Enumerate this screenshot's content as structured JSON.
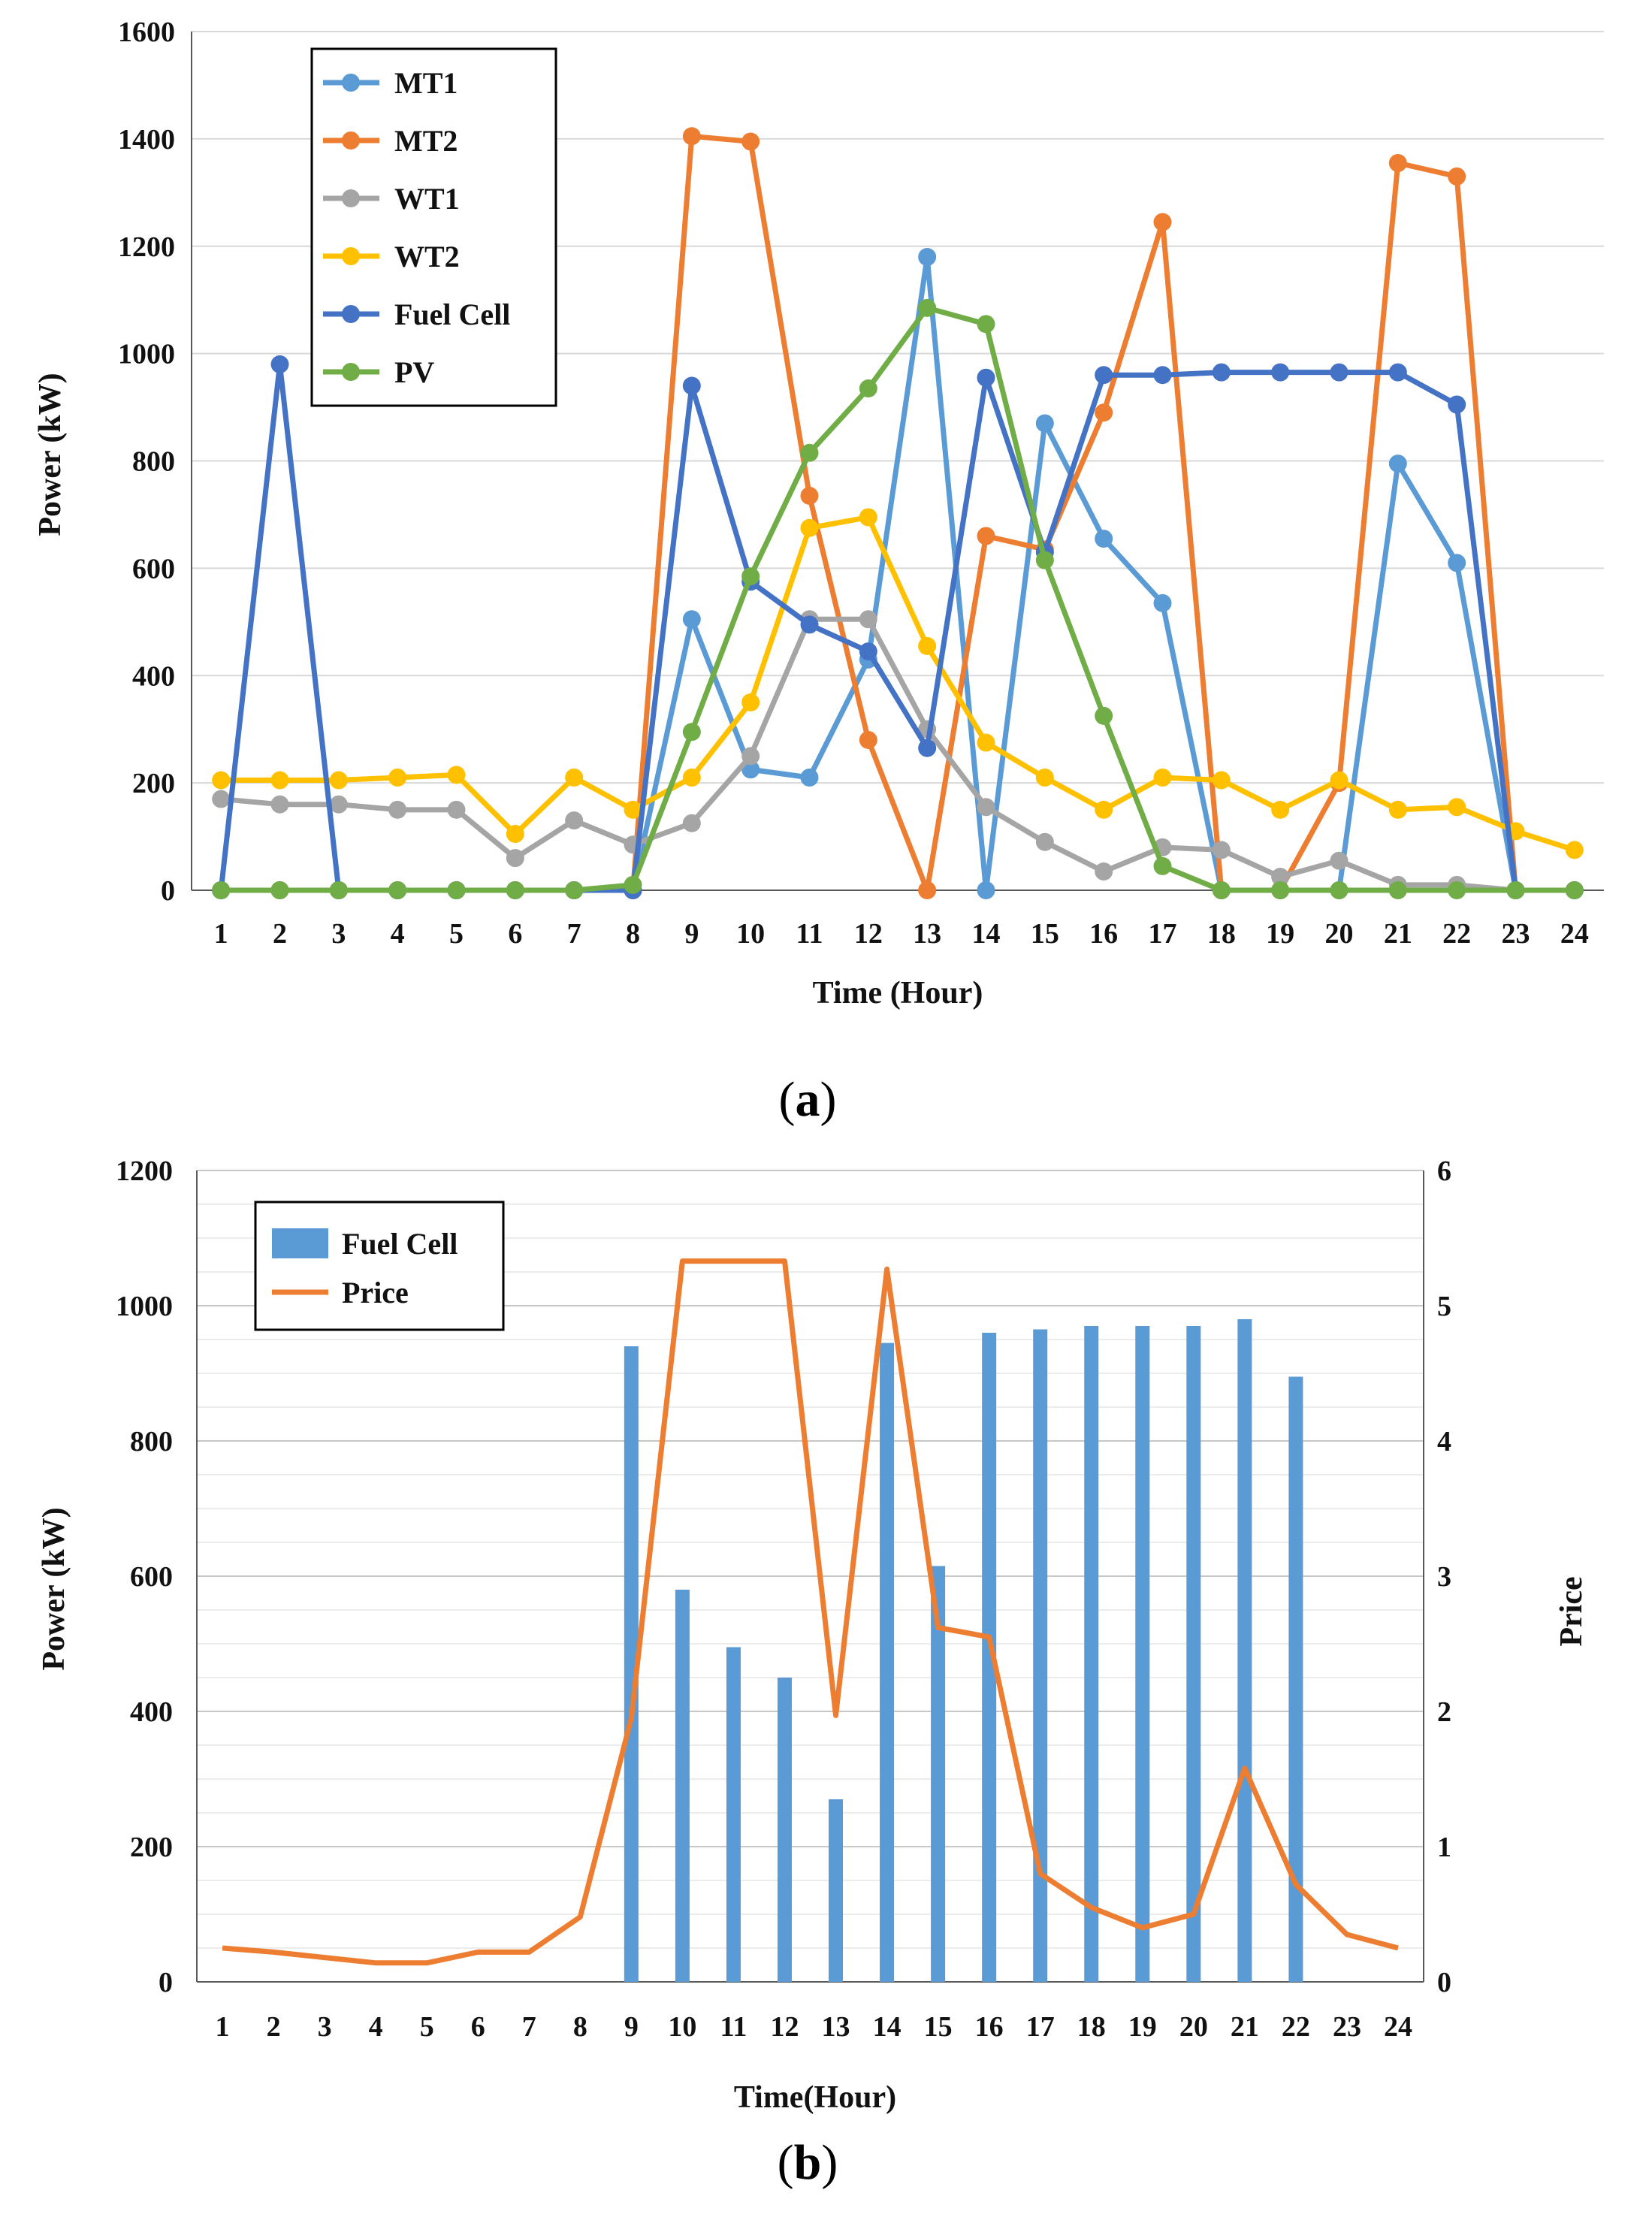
{
  "colors": {
    "mt1": "#5B9BD5",
    "mt2": "#ED7D31",
    "wt1": "#A5A5A5",
    "wt2": "#FFC000",
    "fuel_cell": "#4472C4",
    "pv": "#70AD47",
    "bar": "#5B9BD5",
    "price": "#ED7D31",
    "grid": "#D9D9D9"
  },
  "captions": {
    "a_open": "(",
    "a_letter": "a",
    "a_close": ")",
    "b_open": "(",
    "b_letter": "b",
    "b_close": ")"
  },
  "chart_data": [
    {
      "type": "line",
      "title": "",
      "xlabel": "Time (Hour)",
      "ylabel": "Power (kW)",
      "ylim": [
        0,
        1600
      ],
      "yticks": [
        0,
        200,
        400,
        600,
        800,
        1000,
        1200,
        1400,
        1600
      ],
      "categories": [
        "1",
        "2",
        "3",
        "4",
        "5",
        "6",
        "7",
        "8",
        "9",
        "10",
        "11",
        "12",
        "13",
        "14",
        "15",
        "16",
        "17",
        "18",
        "19",
        "20",
        "21",
        "22",
        "23",
        "24"
      ],
      "legend_position": "top-left",
      "series": [
        {
          "name": "MT1",
          "color_key": "mt1",
          "values": [
            0,
            0,
            0,
            0,
            0,
            0,
            0,
            0,
            505,
            225,
            210,
            430,
            1180,
            0,
            870,
            655,
            535,
            0,
            0,
            0,
            795,
            610,
            0,
            0
          ]
        },
        {
          "name": "MT2",
          "color_key": "mt2",
          "values": [
            0,
            0,
            0,
            0,
            0,
            0,
            0,
            0,
            1405,
            1395,
            735,
            280,
            0,
            660,
            635,
            890,
            1245,
            0,
            0,
            200,
            1355,
            1330,
            0,
            0
          ]
        },
        {
          "name": "WT1",
          "color_key": "wt1",
          "values": [
            170,
            160,
            160,
            150,
            150,
            60,
            130,
            85,
            125,
            250,
            505,
            505,
            300,
            155,
            90,
            35,
            80,
            75,
            25,
            55,
            10,
            10,
            0,
            0
          ]
        },
        {
          "name": "WT2",
          "color_key": "wt2",
          "values": [
            205,
            205,
            205,
            210,
            215,
            105,
            210,
            150,
            210,
            350,
            675,
            695,
            455,
            275,
            210,
            150,
            210,
            205,
            150,
            205,
            150,
            155,
            110,
            75
          ]
        },
        {
          "name": "Fuel Cell",
          "color_key": "fuel_cell",
          "values": [
            0,
            980,
            0,
            0,
            0,
            0,
            0,
            0,
            940,
            575,
            495,
            445,
            265,
            955,
            630,
            960,
            960,
            965,
            965,
            965,
            965,
            905,
            0,
            0
          ]
        },
        {
          "name": "PV",
          "color_key": "pv",
          "values": [
            0,
            0,
            0,
            0,
            0,
            0,
            0,
            10,
            295,
            585,
            815,
            935,
            1085,
            1055,
            615,
            325,
            45,
            0,
            0,
            0,
            0,
            0,
            0,
            0
          ]
        }
      ]
    },
    {
      "type": "bar+line",
      "title": "",
      "xlabel": "Time(Hour)",
      "ylabel": "Power (kW)",
      "y2label": "Price",
      "ylim": [
        0,
        1200
      ],
      "y2lim": [
        0,
        6
      ],
      "yticks": [
        0,
        200,
        400,
        600,
        800,
        1000,
        1200
      ],
      "y2ticks": [
        0,
        1,
        2,
        3,
        4,
        5,
        6
      ],
      "categories": [
        "1",
        "2",
        "3",
        "4",
        "5",
        "6",
        "7",
        "8",
        "9",
        "10",
        "11",
        "12",
        "13",
        "14",
        "15",
        "16",
        "17",
        "18",
        "19",
        "20",
        "21",
        "22",
        "23",
        "24"
      ],
      "legend_position": "top-left",
      "series": [
        {
          "name": "Fuel Cell",
          "kind": "bar",
          "axis": "left",
          "color_key": "bar",
          "values": [
            0,
            0,
            0,
            0,
            0,
            0,
            0,
            0,
            940,
            580,
            495,
            450,
            270,
            945,
            615,
            960,
            965,
            970,
            970,
            970,
            980,
            895,
            0,
            0
          ]
        },
        {
          "name": "Price",
          "kind": "line",
          "axis": "right",
          "color_key": "price",
          "values": [
            0.25,
            0.22,
            0.18,
            0.14,
            0.14,
            0.22,
            0.22,
            0.48,
            1.95,
            5.33,
            5.33,
            5.33,
            1.97,
            5.27,
            2.62,
            2.55,
            0.8,
            0.55,
            0.4,
            0.5,
            1.58,
            0.72,
            0.35,
            0.25
          ]
        }
      ]
    }
  ]
}
